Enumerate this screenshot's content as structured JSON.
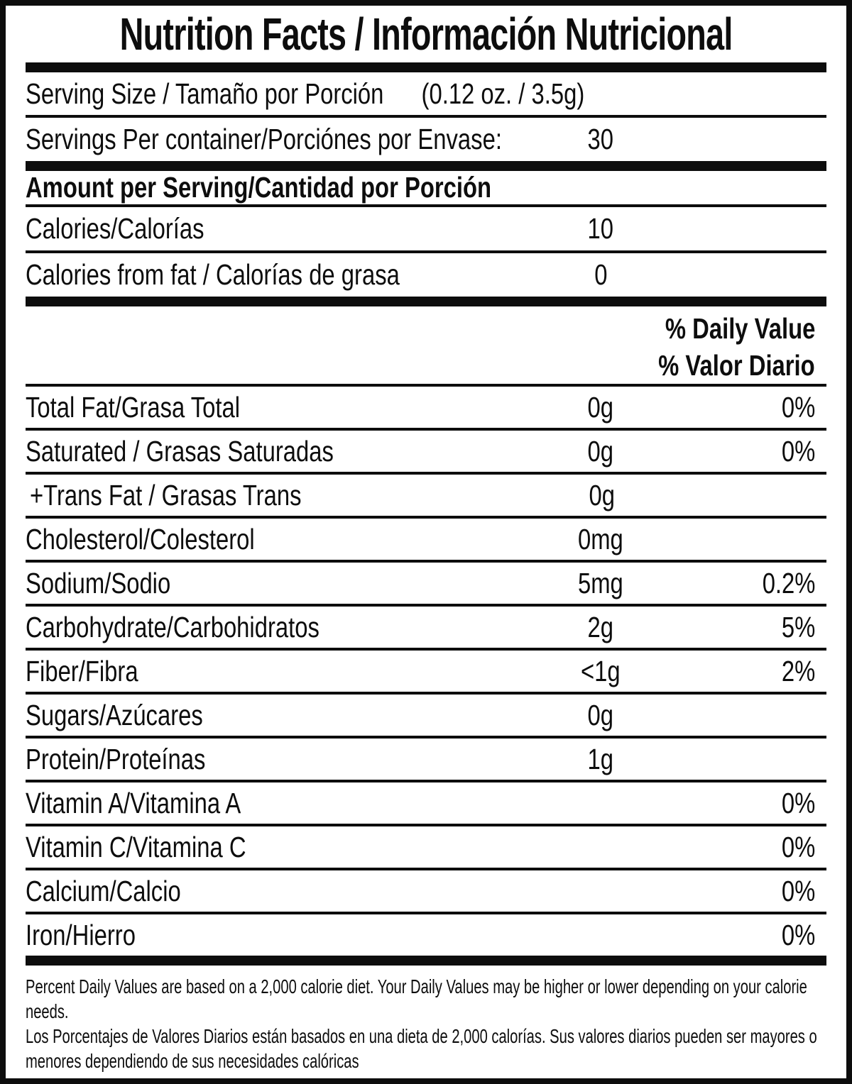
{
  "colors": {
    "ink": "#0d0d0d",
    "paper": "#ffffff"
  },
  "title": "Nutrition Facts / Información Nutricional",
  "serving": {
    "size_label": "Serving Size / Tamaño por Porción",
    "size_value": "(0.12 oz. / 3.5g)",
    "per_container_label": "Servings Per container/Porciónes por Envase:",
    "per_container_value": "30"
  },
  "amount_per_serving_header": "Amount per Serving/Cantidad por Porción",
  "calories": {
    "label": "Calories/Calorías",
    "value": "10"
  },
  "calories_from_fat": {
    "label": "Calories from fat / Calorías de grasa",
    "value": "0"
  },
  "daily_value_header": {
    "en": "% Daily Value",
    "es": "% Valor Diario"
  },
  "nutrients": [
    {
      "label": "Total Fat/Grasa Total",
      "amount": "0g",
      "dv": "0%"
    },
    {
      "label": "Saturated / Grasas Saturadas",
      "amount": "0g",
      "dv": "0%"
    },
    {
      "label": "+Trans Fat / Grasas Trans",
      "amount": "0g",
      "dv": ""
    },
    {
      "label": "Cholesterol/Colesterol",
      "amount": "0mg",
      "dv": ""
    },
    {
      "label": "Sodium/Sodio",
      "amount": "5mg",
      "dv": "0.2%"
    },
    {
      "label": "Carbohydrate/Carbohidratos",
      "amount": "2g",
      "dv": "5%"
    },
    {
      "label": "Fiber/Fibra",
      "amount": "<1g",
      "dv": "2%"
    },
    {
      "label": "Sugars/Azúcares",
      "amount": "0g",
      "dv": ""
    },
    {
      "label": "Protein/Proteínas",
      "amount": "1g",
      "dv": ""
    },
    {
      "label": "Vitamin A/Vitamina A",
      "amount": "",
      "dv": "0%"
    },
    {
      "label": "Vitamin C/Vitamina C",
      "amount": "",
      "dv": "0%"
    },
    {
      "label": "Calcium/Calcio",
      "amount": "",
      "dv": "0%"
    },
    {
      "label": "Iron/Hierro",
      "amount": "",
      "dv": "0%"
    }
  ],
  "footnotes": {
    "en": "Percent Daily Values are based on a 2,000 calorie diet. Your Daily Values may be higher or lower depending on your calorie needs.",
    "es": "Los Porcentajes de Valores Diarios están basados en una dieta de 2,000 calorías. Sus valores diarios pueden ser mayores o menores dependiendo de sus necesidades calóricas"
  }
}
